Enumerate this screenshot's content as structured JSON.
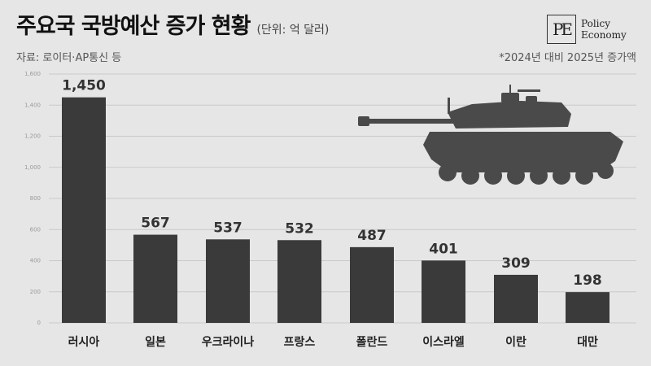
{
  "header": {
    "title": "주요국 국방예산 증가 현황",
    "unit": "(단위: 억 달러)",
    "source": "자료: 로이터·AP통신 등",
    "note": "*2024년 대비 2025년 증가액"
  },
  "logo": {
    "mark": "PE",
    "line1": "Policy",
    "line2": "Economy"
  },
  "icons": [
    "tank-silhouette"
  ],
  "colors": {
    "bar": "#3a3a3a",
    "background": "#e6e6e6",
    "grid": "#c9c9c9",
    "tank": "#4a4a4a"
  },
  "chart_data": {
    "type": "bar",
    "categories": [
      "러시아",
      "일본",
      "우크라이나",
      "프랑스",
      "폴란드",
      "이스라엘",
      "이란",
      "대만"
    ],
    "values": [
      1450,
      567,
      537,
      532,
      487,
      401,
      309,
      198
    ],
    "data_labels": [
      "1,450",
      "567",
      "537",
      "532",
      "487",
      "401",
      "309",
      "198"
    ],
    "yticks": [
      0,
      200,
      400,
      600,
      800,
      1000,
      1200,
      1400,
      1600
    ],
    "ytick_labels": [
      "0",
      "200",
      "400",
      "600",
      "800",
      "1,000",
      "1,200",
      "1,400",
      "1,600"
    ],
    "ylim": [
      0,
      1600
    ],
    "grid": true,
    "legend": false
  }
}
